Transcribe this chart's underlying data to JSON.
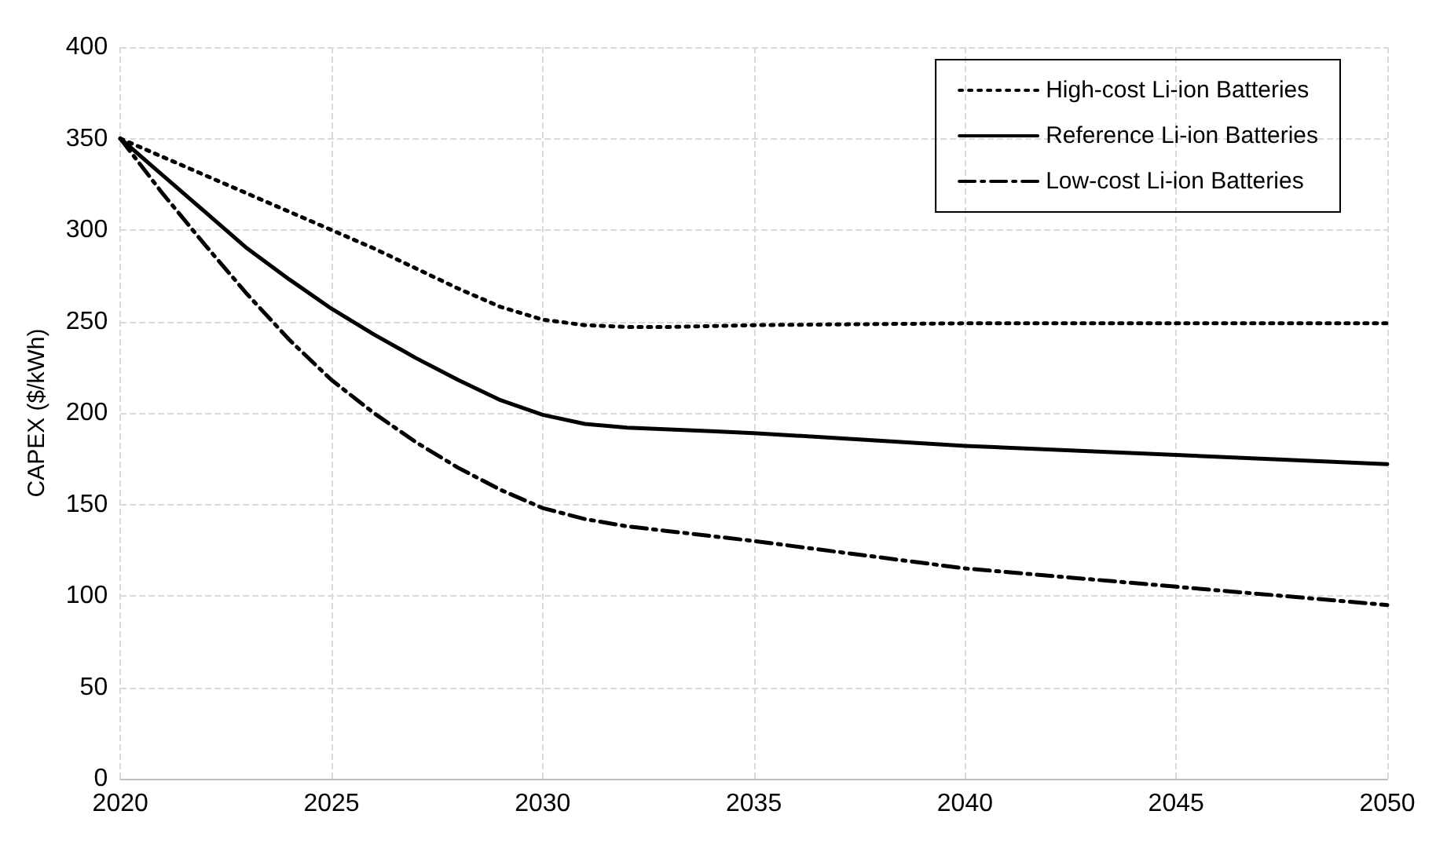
{
  "chart_data": {
    "type": "line",
    "ylabel": "CAPEX ($/kWh)",
    "xlim": [
      2020,
      2050
    ],
    "xticks": [
      2020,
      2025,
      2030,
      2035,
      2040,
      2045,
      2050
    ],
    "ylim": [
      0,
      400
    ],
    "yticks": [
      0,
      50,
      100,
      150,
      200,
      250,
      300,
      350,
      400
    ],
    "grid": true,
    "legend": "top right",
    "marker": "none",
    "series": [
      {
        "name": "High-cost Li-ion Batteries",
        "color": "#000000",
        "line_style": "dotted",
        "x": [
          2020,
          2021,
          2022,
          2023,
          2024,
          2025,
          2026,
          2027,
          2028,
          2029,
          2030,
          2031,
          2032,
          2033,
          2035,
          2040,
          2045,
          2050
        ],
        "values": [
          350,
          340,
          330,
          320,
          310,
          300,
          290,
          279,
          268,
          258,
          251,
          248,
          247,
          247,
          248,
          249,
          249,
          249
        ]
      },
      {
        "name": "Reference Li-ion Batteries",
        "color": "#000000",
        "line_style": "solid",
        "x": [
          2020,
          2021,
          2022,
          2023,
          2024,
          2025,
          2026,
          2027,
          2028,
          2029,
          2030,
          2031,
          2032,
          2033,
          2034,
          2035,
          2040,
          2045,
          2050
        ],
        "values": [
          350,
          330,
          310,
          290,
          273,
          257,
          243,
          230,
          218,
          207,
          199,
          194,
          192,
          191,
          190,
          189,
          182,
          177,
          172
        ]
      },
      {
        "name": "Low-cost Li-ion Batteries",
        "color": "#000000",
        "line_style": "dashed",
        "x": [
          2020,
          2021,
          2022,
          2023,
          2024,
          2025,
          2026,
          2027,
          2028,
          2029,
          2030,
          2031,
          2032,
          2035,
          2040,
          2045,
          2050
        ],
        "values": [
          350,
          320,
          292,
          265,
          240,
          218,
          200,
          184,
          170,
          158,
          148,
          142,
          138,
          130,
          115,
          105,
          95
        ]
      }
    ]
  }
}
